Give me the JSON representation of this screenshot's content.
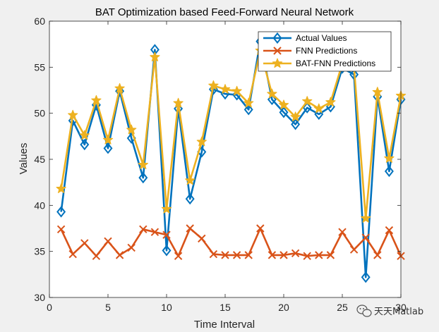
{
  "chart_data": {
    "type": "line",
    "title": "BAT Optimization based Feed-Forward Neural Network",
    "xlabel": "Time Interval",
    "ylabel": "Values",
    "xlim": [
      0,
      30
    ],
    "ylim": [
      30,
      60
    ],
    "xticks": [
      0,
      5,
      10,
      15,
      20,
      25,
      30
    ],
    "yticks": [
      30,
      35,
      40,
      45,
      50,
      55,
      60
    ],
    "legend_position": "top-right",
    "x": [
      1,
      2,
      3,
      4,
      5,
      6,
      7,
      8,
      9,
      10,
      11,
      12,
      13,
      14,
      15,
      16,
      17,
      18,
      19,
      20,
      21,
      22,
      23,
      24,
      25,
      26,
      27,
      28,
      29,
      30
    ],
    "series": [
      {
        "name": "Actual Values",
        "color": "#0072BD",
        "marker": "diamond",
        "values": [
          39.3,
          49.2,
          46.6,
          50.9,
          46.2,
          52.4,
          47.3,
          43.0,
          56.9,
          35.1,
          50.5,
          40.7,
          45.8,
          52.6,
          52.1,
          52.0,
          50.4,
          57.8,
          51.5,
          50.1,
          48.8,
          50.6,
          49.9,
          50.7,
          54.9,
          54.2,
          32.2,
          51.8,
          43.7,
          51.5
        ]
      },
      {
        "name": "FNN Predictions",
        "color": "#D95319",
        "marker": "x",
        "values": [
          37.4,
          34.7,
          35.9,
          34.5,
          36.1,
          34.6,
          35.4,
          37.4,
          37.1,
          36.8,
          34.5,
          37.5,
          36.4,
          34.7,
          34.6,
          34.6,
          34.6,
          37.5,
          34.6,
          34.6,
          34.8,
          34.5,
          34.6,
          34.6,
          37.1,
          35.2,
          36.5,
          34.6,
          37.3,
          34.5
        ]
      },
      {
        "name": "BAT-FNN Predictions",
        "color": "#EDB120",
        "marker": "pentagram",
        "values": [
          41.8,
          49.8,
          47.6,
          51.4,
          47.1,
          52.7,
          48.2,
          44.4,
          56.1,
          39.6,
          51.1,
          42.7,
          46.9,
          53.0,
          52.6,
          52.4,
          51.1,
          56.8,
          52.1,
          50.9,
          49.6,
          51.3,
          50.5,
          51.2,
          55.4,
          55.0,
          38.6,
          52.3,
          45.1,
          51.9
        ]
      }
    ]
  },
  "watermark": {
    "text": "天天Matlab"
  }
}
